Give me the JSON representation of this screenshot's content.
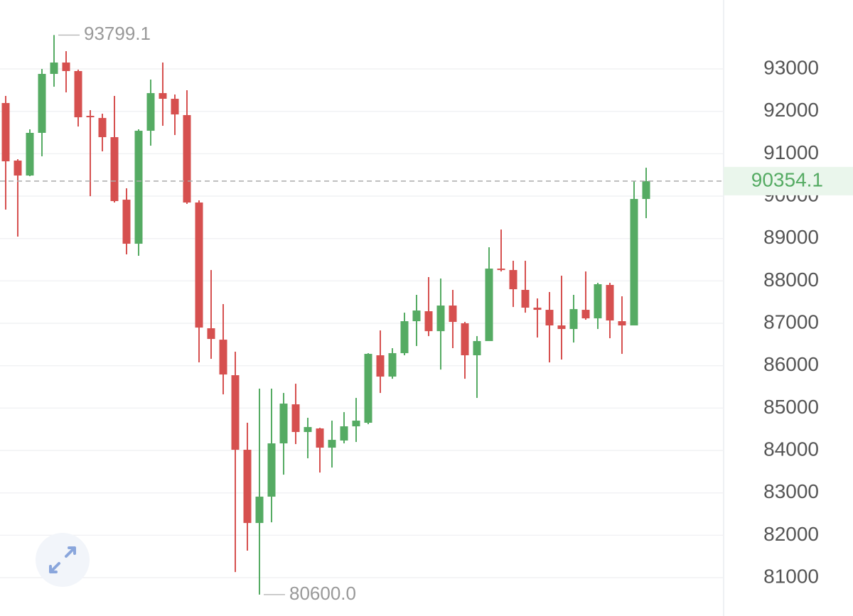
{
  "chart_data": {
    "type": "candlestick",
    "open": [
      92196,
      90838,
      90486,
      91492,
      92883,
      93151,
      92950,
      91894,
      91843,
      91391,
      89916,
      88877,
      91542,
      92430,
      92296,
      91911,
      89849,
      86883,
      86614,
      85776,
      84017,
      82290,
      82911,
      84168,
      85089,
      84436,
      84520,
      84067,
      84235,
      84570,
      84654,
      86246,
      85743,
      86296,
      87050,
      87285,
      86815,
      87419,
      87000,
      86246,
      86581,
      88290,
      88257,
      87788,
      87369,
      87318,
      86950,
      86866,
      87318,
      87117,
      87905,
      87050,
      86950,
      89933
    ],
    "high": [
      92363,
      90871,
      91575,
      93000,
      93799.1,
      93419,
      92983,
      92028,
      91944,
      92363,
      90184,
      91575,
      92749,
      93151,
      92397,
      92497,
      89900,
      88257,
      87453,
      86330,
      84654,
      85458,
      85458,
      85357,
      85575,
      84771,
      84536,
      84704,
      84905,
      85240,
      86296,
      86832,
      86413,
      87251,
      87671,
      88090,
      88056,
      87788,
      87033,
      86698,
      88793,
      89212,
      88475,
      88475,
      87587,
      87738,
      88123,
      87671,
      88223,
      87955,
      87955,
      87637,
      90352,
      90670
    ],
    "low": [
      89682,
      89045,
      90470,
      90939,
      92581,
      92447,
      91642,
      89999,
      91056,
      89849,
      88626,
      88592,
      91190,
      91659,
      91441,
      89816,
      86078,
      86162,
      85324,
      81134,
      81637,
      80600,
      82306,
      83430,
      84151,
      83816,
      83480,
      83598,
      84168,
      84201,
      84620,
      85357,
      85692,
      86246,
      86464,
      86698,
      85910,
      86414,
      85692,
      85240,
      86581,
      88223,
      87385,
      87251,
      86665,
      86078,
      86145,
      86547,
      87084,
      86866,
      86648,
      86279,
      86950,
      89480
    ],
    "close": [
      90821,
      90486,
      91492,
      92883,
      93151,
      92950,
      91860,
      91860,
      91391,
      89883,
      88877,
      91542,
      92430,
      92296,
      91927,
      89849,
      86899,
      86631,
      85793,
      84017,
      82290,
      82911,
      84168,
      85106,
      84436,
      84553,
      84067,
      84251,
      84570,
      84704,
      86279,
      85743,
      86296,
      87050,
      87302,
      86815,
      87419,
      87033,
      86246,
      86581,
      88290,
      88257,
      87804,
      87369,
      87318,
      86950,
      86866,
      87335,
      87117,
      87922,
      87067,
      86950,
      89933,
      90354.1
    ],
    "up_color": "#55ab63",
    "down_color": "#d6504f",
    "ylim": [
      80096,
      94626
    ],
    "yticks": [
      81000,
      82000,
      83000,
      84000,
      85000,
      86000,
      87000,
      88000,
      89000,
      90000,
      91000,
      92000,
      93000
    ],
    "grid": true,
    "max_label": {
      "value": 93799.1,
      "label": "93799.1"
    },
    "min_label": {
      "value": 80600,
      "label": "80600.0"
    },
    "last_price": 90354.1
  }
}
